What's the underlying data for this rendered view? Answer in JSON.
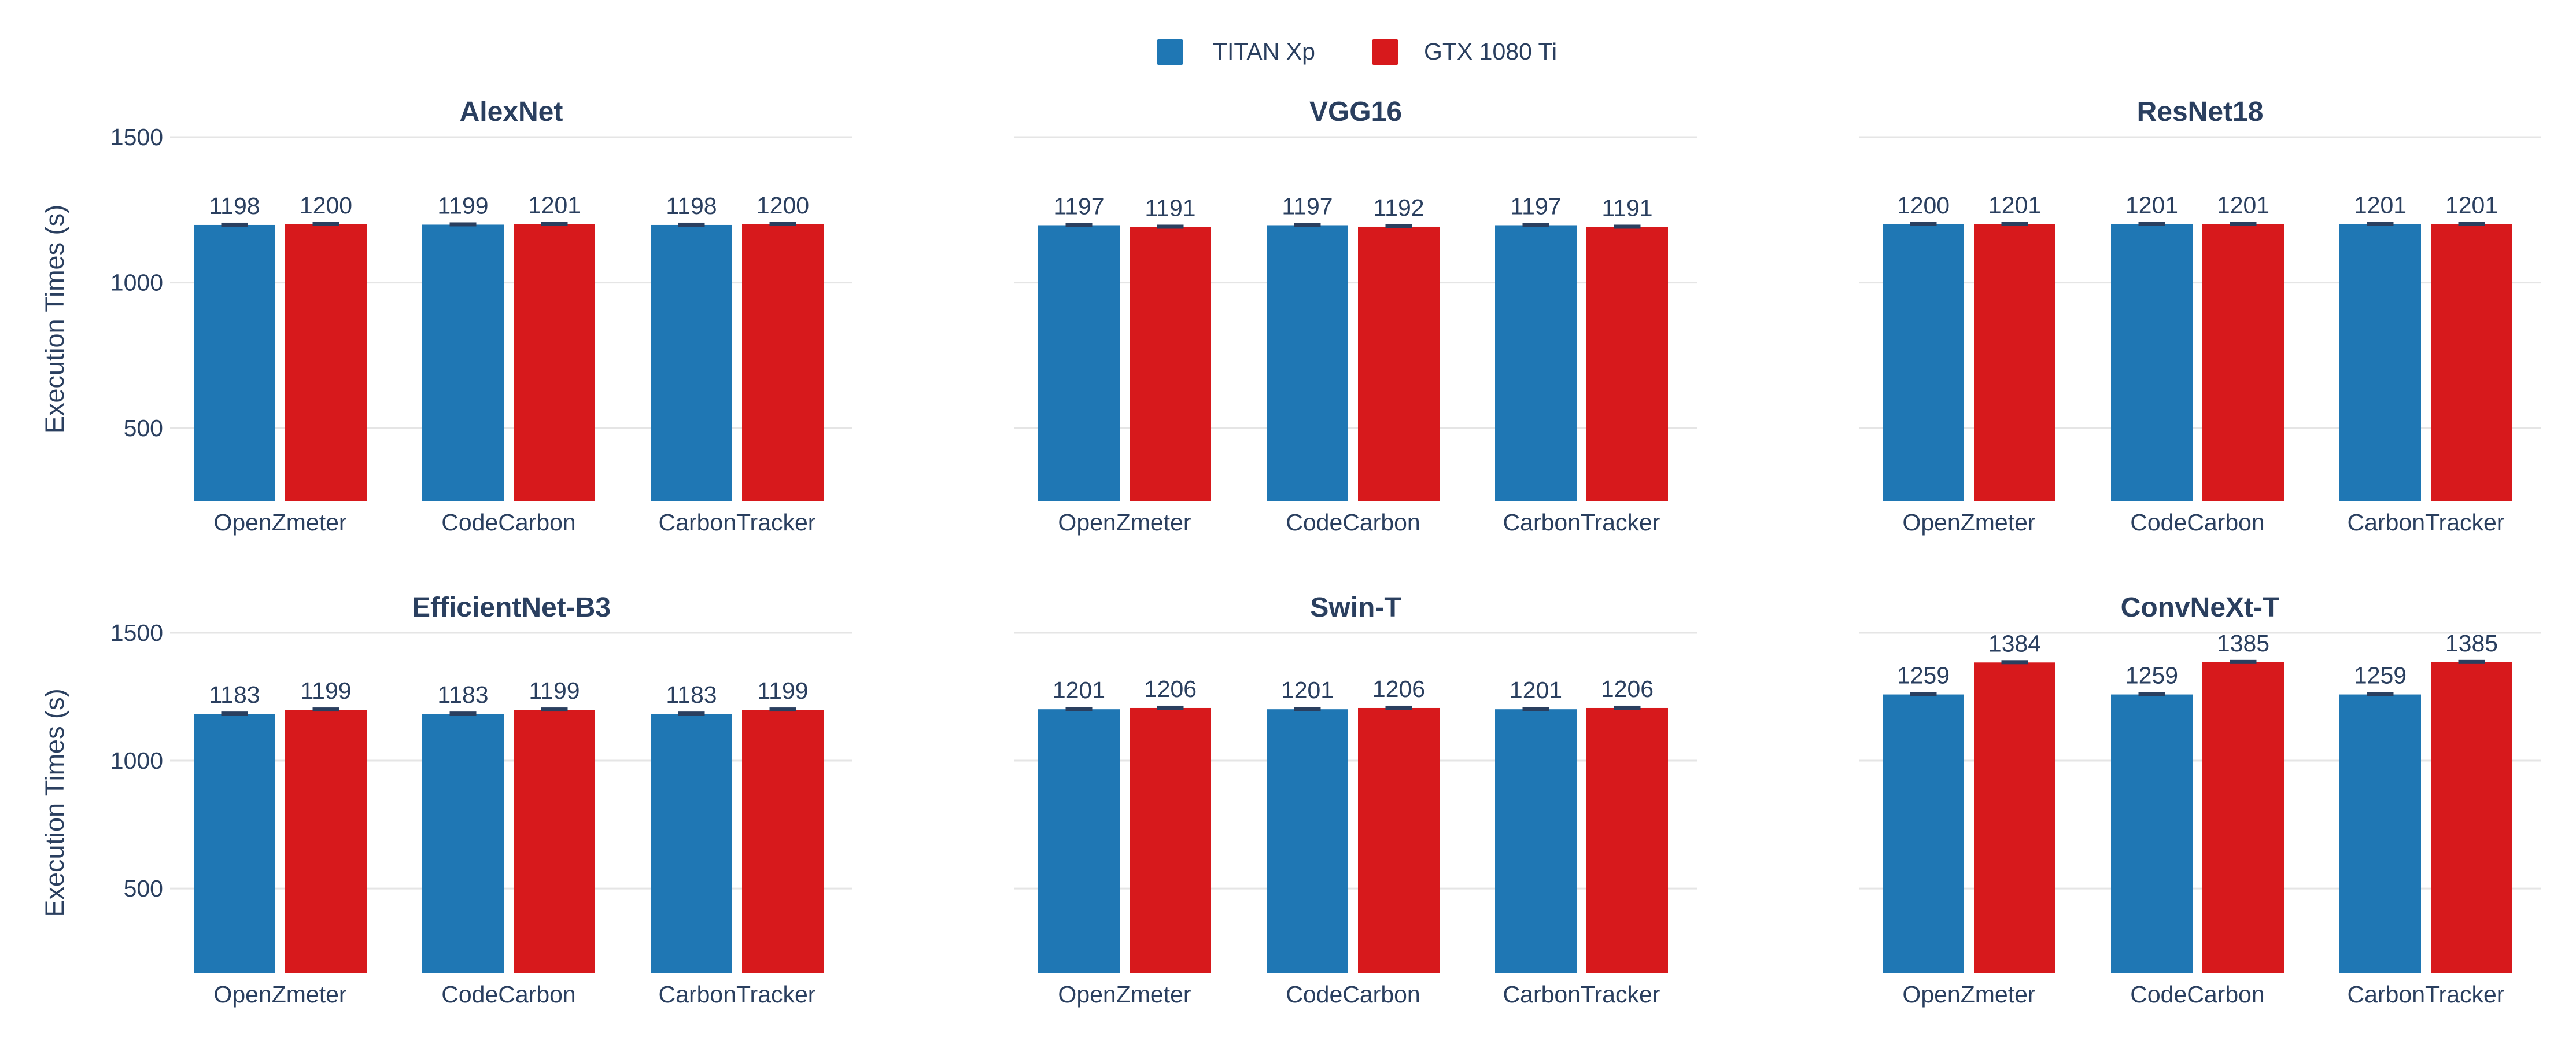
{
  "colors": {
    "series_a": "#1f77b4",
    "series_b": "#d7191c",
    "text": "#2a3f5f",
    "grid": "#e5e5e5",
    "error_bar": "#2a3f5f"
  },
  "legend": {
    "placement": "top-center",
    "items": [
      "TITAN Xp",
      "GTX 1080 Ti"
    ]
  },
  "chart_data": [
    {
      "type": "bar",
      "title": "AlexNet",
      "xlabel": "",
      "ylabel": "Execution Times (s)",
      "ylim": [
        250,
        1500
      ],
      "yticks": [
        500,
        1000,
        1500
      ],
      "grid": true,
      "categories": [
        "OpenZmeter",
        "CodeCarbon",
        "CarbonTracker"
      ],
      "series": [
        {
          "name": "TITAN Xp",
          "values": [
            1198,
            1199,
            1198
          ]
        },
        {
          "name": "GTX 1080 Ti",
          "values": [
            1200,
            1201,
            1200
          ]
        }
      ]
    },
    {
      "type": "bar",
      "title": "VGG16",
      "xlabel": "",
      "ylabel": "",
      "ylim": [
        250,
        1500
      ],
      "yticks": [
        500,
        1000,
        1500
      ],
      "grid": true,
      "categories": [
        "OpenZmeter",
        "CodeCarbon",
        "CarbonTracker"
      ],
      "series": [
        {
          "name": "TITAN Xp",
          "values": [
            1197,
            1197,
            1197
          ]
        },
        {
          "name": "GTX 1080 Ti",
          "values": [
            1191,
            1192,
            1191
          ]
        }
      ]
    },
    {
      "type": "bar",
      "title": "ResNet18",
      "xlabel": "",
      "ylabel": "",
      "ylim": [
        250,
        1500
      ],
      "yticks": [
        500,
        1000,
        1500
      ],
      "grid": true,
      "categories": [
        "OpenZmeter",
        "CodeCarbon",
        "CarbonTracker"
      ],
      "series": [
        {
          "name": "TITAN Xp",
          "values": [
            1200,
            1201,
            1201
          ]
        },
        {
          "name": "GTX 1080 Ti",
          "values": [
            1201,
            1201,
            1201
          ]
        }
      ]
    },
    {
      "type": "bar",
      "title": "EfficientNet-B3",
      "xlabel": "",
      "ylabel": "Execution Times (s)",
      "ylim": [
        170,
        1500
      ],
      "yticks": [
        500,
        1000,
        1500
      ],
      "grid": true,
      "categories": [
        "OpenZmeter",
        "CodeCarbon",
        "CarbonTracker"
      ],
      "series": [
        {
          "name": "TITAN Xp",
          "values": [
            1183,
            1183,
            1183
          ]
        },
        {
          "name": "GTX 1080 Ti",
          "values": [
            1199,
            1199,
            1199
          ]
        }
      ]
    },
    {
      "type": "bar",
      "title": "Swin-T",
      "xlabel": "",
      "ylabel": "",
      "ylim": [
        170,
        1500
      ],
      "yticks": [
        500,
        1000,
        1500
      ],
      "grid": true,
      "categories": [
        "OpenZmeter",
        "CodeCarbon",
        "CarbonTracker"
      ],
      "series": [
        {
          "name": "TITAN Xp",
          "values": [
            1201,
            1201,
            1201
          ]
        },
        {
          "name": "GTX 1080 Ti",
          "values": [
            1206,
            1206,
            1206
          ]
        }
      ]
    },
    {
      "type": "bar",
      "title": "ConvNeXt-T",
      "xlabel": "",
      "ylabel": "",
      "ylim": [
        170,
        1500
      ],
      "yticks": [
        500,
        1000,
        1500
      ],
      "grid": true,
      "categories": [
        "OpenZmeter",
        "CodeCarbon",
        "CarbonTracker"
      ],
      "series": [
        {
          "name": "TITAN Xp",
          "values": [
            1259,
            1259,
            1259
          ]
        },
        {
          "name": "GTX 1080 Ti",
          "values": [
            1384,
            1385,
            1385
          ]
        }
      ]
    }
  ]
}
